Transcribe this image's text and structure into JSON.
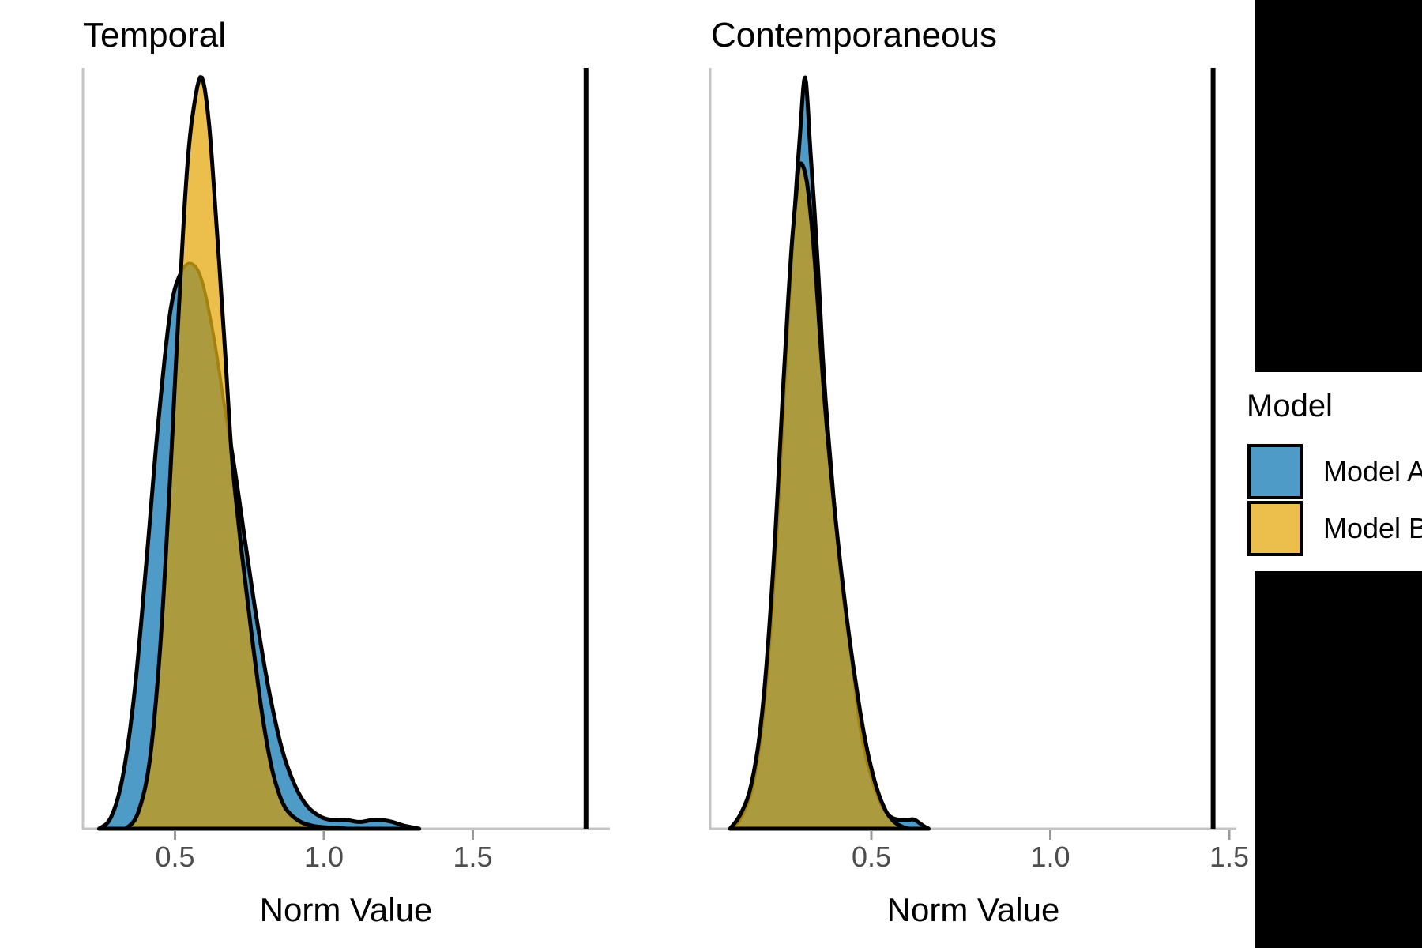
{
  "chart_data": {
    "type": "area",
    "chart_kind": "overlapping-density",
    "grid": false,
    "ylabel": "",
    "legend_position": "right",
    "panels": [
      {
        "title": "Temporal",
        "xlabel": "Norm Value",
        "x_ticks": [
          "0.5",
          "1.0",
          "1.5"
        ],
        "x_tick_values": [
          0.5,
          1.0,
          1.5
        ],
        "x_range": [
          0.195,
          1.96
        ],
        "vline_x": 1.88,
        "series": [
          {
            "name": "Model A",
            "color": "#4E9BC7",
            "points": [
              [
                0.245,
                0
              ],
              [
                0.285,
                0.015
              ],
              [
                0.325,
                0.07
              ],
              [
                0.365,
                0.185
              ],
              [
                0.405,
                0.36
              ],
              [
                0.445,
                0.545
              ],
              [
                0.485,
                0.69
              ],
              [
                0.52,
                0.74
              ],
              [
                0.555,
                0.752
              ],
              [
                0.59,
                0.73
              ],
              [
                0.63,
                0.655
              ],
              [
                0.665,
                0.565
              ],
              [
                0.7,
                0.48
              ],
              [
                0.74,
                0.37
              ],
              [
                0.78,
                0.265
              ],
              [
                0.82,
                0.175
              ],
              [
                0.86,
                0.105
              ],
              [
                0.9,
                0.06
              ],
              [
                0.94,
                0.032
              ],
              [
                0.98,
                0.018
              ],
              [
                1.02,
                0.012
              ],
              [
                1.07,
                0.012
              ],
              [
                1.12,
                0.009
              ],
              [
                1.17,
                0.012
              ],
              [
                1.22,
                0.01
              ],
              [
                1.27,
                0.004
              ],
              [
                1.32,
                0
              ]
            ]
          },
          {
            "name": "Model B",
            "color": "#ECBF4D",
            "points": [
              [
                0.335,
                0
              ],
              [
                0.375,
                0.02
              ],
              [
                0.415,
                0.09
              ],
              [
                0.45,
                0.24
              ],
              [
                0.48,
                0.44
              ],
              [
                0.51,
                0.67
              ],
              [
                0.54,
                0.875
              ],
              [
                0.565,
                0.965
              ],
              [
                0.59,
                1.0
              ],
              [
                0.615,
                0.935
              ],
              [
                0.64,
                0.8
              ],
              [
                0.665,
                0.655
              ],
              [
                0.69,
                0.5
              ],
              [
                0.715,
                0.4
              ],
              [
                0.74,
                0.315
              ],
              [
                0.765,
                0.235
              ],
              [
                0.79,
                0.16
              ],
              [
                0.815,
                0.1
              ],
              [
                0.84,
                0.058
              ],
              [
                0.87,
                0.028
              ],
              [
                0.91,
                0.012
              ],
              [
                0.95,
                0.005
              ],
              [
                1.0,
                0.002
              ],
              [
                1.05,
                0.001
              ],
              [
                1.08,
                0
              ]
            ]
          }
        ]
      },
      {
        "title": "Contemporaneous",
        "xlabel": "Norm Value",
        "x_ticks": [
          "0.5",
          "1.0",
          "1.5"
        ],
        "x_tick_values": [
          0.5,
          1.0,
          1.5
        ],
        "x_range": [
          0.05,
          1.52
        ],
        "vline_x": 1.455,
        "series": [
          {
            "name": "Model A",
            "color": "#4E9BC7",
            "points": [
              [
                0.112,
                0
              ],
              [
                0.14,
                0.018
              ],
              [
                0.17,
                0.06
              ],
              [
                0.2,
                0.16
              ],
              [
                0.23,
                0.345
              ],
              [
                0.26,
                0.61
              ],
              [
                0.28,
                0.78
              ],
              [
                0.3,
                0.92
              ],
              [
                0.315,
                1.0
              ],
              [
                0.33,
                0.9
              ],
              [
                0.348,
                0.77
              ],
              [
                0.368,
                0.6
              ],
              [
                0.39,
                0.465
              ],
              [
                0.415,
                0.335
              ],
              [
                0.445,
                0.225
              ],
              [
                0.47,
                0.13
              ],
              [
                0.5,
                0.068
              ],
              [
                0.53,
                0.03
              ],
              [
                0.56,
                0.014
              ],
              [
                0.6,
                0.012
              ],
              [
                0.62,
                0.012
              ],
              [
                0.645,
                0.004
              ],
              [
                0.66,
                0
              ]
            ]
          },
          {
            "name": "Model B",
            "color": "#ECBF4D",
            "points": [
              [
                0.105,
                0
              ],
              [
                0.135,
                0.02
              ],
              [
                0.165,
                0.06
              ],
              [
                0.195,
                0.155
              ],
              [
                0.225,
                0.34
              ],
              [
                0.255,
                0.6
              ],
              [
                0.275,
                0.76
              ],
              [
                0.29,
                0.845
              ],
              [
                0.3,
                0.885
              ],
              [
                0.32,
                0.86
              ],
              [
                0.342,
                0.755
              ],
              [
                0.366,
                0.59
              ],
              [
                0.39,
                0.46
              ],
              [
                0.42,
                0.325
              ],
              [
                0.45,
                0.215
              ],
              [
                0.48,
                0.125
              ],
              [
                0.51,
                0.062
              ],
              [
                0.538,
                0.026
              ],
              [
                0.562,
                0.01
              ],
              [
                0.585,
                0.003
              ],
              [
                0.605,
                0
              ]
            ]
          }
        ]
      }
    ]
  },
  "legend": {
    "title": "Model",
    "items": [
      {
        "label": "Model A",
        "color": "#4E9BC7"
      },
      {
        "label": "Model B",
        "color": "#ECBF4D"
      }
    ]
  },
  "colors": {
    "model_a_fill": "#4E9BC7",
    "model_b_fill": "#ECBF4D",
    "overlap_fill": "#AB9B3E",
    "hidden_outline": "#A5820E",
    "outline": "#000000",
    "axis_line": "#C4C4C4",
    "tick_mark": "#9A9A9A",
    "tick_label": "#4D4D4D",
    "vline": "#000000",
    "redaction": "#000000"
  }
}
